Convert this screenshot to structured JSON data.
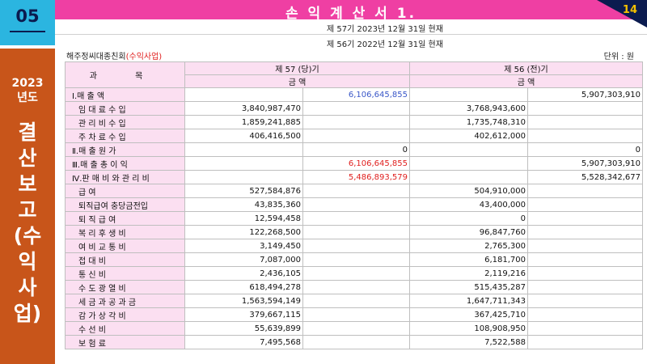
{
  "sidebar": {
    "slide_number": "05",
    "year_line1": "2023",
    "year_line2": "년도",
    "vertical_title": [
      "결",
      "산",
      "보",
      "고",
      "(수",
      "익",
      "사",
      "업)"
    ]
  },
  "header": {
    "title": "손 익 계 산 서 1.",
    "page_number": "14",
    "period_current": "제  57기   2023년 12월 31일 현재",
    "period_prior": "제  56기   2022년 12월 31일 현재"
  },
  "org": {
    "name": "해주정씨대종친회",
    "business_type": "(수익사업)",
    "unit": "단위 : 원"
  },
  "table": {
    "headers": {
      "subject": "과 목",
      "current_period": "제  57 (당)기",
      "prior_period": "제  56 (전)기",
      "amount": "금          액"
    },
    "rows": [
      {
        "label": "Ⅰ.매  출  액",
        "level": "main",
        "cur_detail": "",
        "cur_total": "6,106,645,855",
        "prev_detail": "",
        "prev_total": "5,907,303,910",
        "cur_total_color": "blue"
      },
      {
        "label": "임 대 료 수 입",
        "level": "sub",
        "cur_detail": "3,840,987,470",
        "cur_total": "",
        "prev_detail": "3,768,943,600",
        "prev_total": ""
      },
      {
        "label": "관 리 비 수 입",
        "level": "sub",
        "cur_detail": "1,859,241,885",
        "cur_total": "",
        "prev_detail": "1,735,748,310",
        "prev_total": ""
      },
      {
        "label": "주 차 료 수 입",
        "level": "sub",
        "cur_detail": "406,416,500",
        "cur_total": "",
        "prev_detail": "402,612,000",
        "prev_total": ""
      },
      {
        "label": "Ⅱ.매 출 원 가",
        "level": "main",
        "cur_detail": "",
        "cur_total": "0",
        "prev_detail": "",
        "prev_total": "0"
      },
      {
        "label": "Ⅲ.매 출 총 이 익",
        "level": "main",
        "cur_detail": "",
        "cur_total": "6,106,645,855",
        "prev_detail": "",
        "prev_total": "5,907,303,910",
        "cur_total_color": "red"
      },
      {
        "label": "Ⅳ.판 매 비 와 관 리 비",
        "level": "main",
        "cur_detail": "",
        "cur_total": "5,486,893,579",
        "prev_detail": "",
        "prev_total": "5,528,342,677",
        "cur_total_color": "red"
      },
      {
        "label": "급          여",
        "level": "sub",
        "cur_detail": "527,584,876",
        "cur_total": "",
        "prev_detail": "504,910,000",
        "prev_total": ""
      },
      {
        "label": "퇴직급여 충당금전입",
        "level": "sub",
        "cur_detail": "43,835,360",
        "cur_total": "",
        "prev_detail": "43,400,000",
        "prev_total": ""
      },
      {
        "label": "퇴  직  급  여",
        "level": "sub",
        "cur_detail": "12,594,458",
        "cur_total": "",
        "prev_detail": "0",
        "prev_total": ""
      },
      {
        "label": "복 리 후 생 비",
        "level": "sub",
        "cur_detail": "122,268,500",
        "cur_total": "",
        "prev_detail": "96,847,760",
        "prev_total": ""
      },
      {
        "label": "여 비 교 통 비",
        "level": "sub",
        "cur_detail": "3,149,450",
        "cur_total": "",
        "prev_detail": "2,765,300",
        "prev_total": ""
      },
      {
        "label": "접      대      비",
        "level": "sub",
        "cur_detail": "7,087,000",
        "cur_total": "",
        "prev_detail": "6,181,700",
        "prev_total": ""
      },
      {
        "label": "통      신      비",
        "level": "sub",
        "cur_detail": "2,436,105",
        "cur_total": "",
        "prev_detail": "2,119,216",
        "prev_total": ""
      },
      {
        "label": "수 도 광 열 비",
        "level": "sub",
        "cur_detail": "618,494,278",
        "cur_total": "",
        "prev_detail": "515,435,287",
        "prev_total": ""
      },
      {
        "label": "세 금 과 공 과 금",
        "level": "sub",
        "cur_detail": "1,563,594,149",
        "cur_total": "",
        "prev_detail": "1,647,711,343",
        "prev_total": ""
      },
      {
        "label": "감 가 상 각 비",
        "level": "sub",
        "cur_detail": "379,667,115",
        "cur_total": "",
        "prev_detail": "367,425,710",
        "prev_total": ""
      },
      {
        "label": "수      선      비",
        "level": "sub",
        "cur_detail": "55,639,899",
        "cur_total": "",
        "prev_detail": "108,908,950",
        "prev_total": ""
      },
      {
        "label": "보      험      료",
        "level": "sub",
        "cur_detail": "7,495,568",
        "cur_total": "",
        "prev_detail": "7,522,588",
        "prev_total": ""
      }
    ]
  },
  "colors": {
    "title_bar": "#ef3fa3",
    "slide_number_bg": "#2bb5e0",
    "side_panel": "#c8551a",
    "page_corner": "#0b1b4f",
    "page_number": "#f5c000",
    "header_cells": "#fbdff1",
    "emphasis_blue": "#3a57c8",
    "emphasis_red": "#e0201f"
  }
}
